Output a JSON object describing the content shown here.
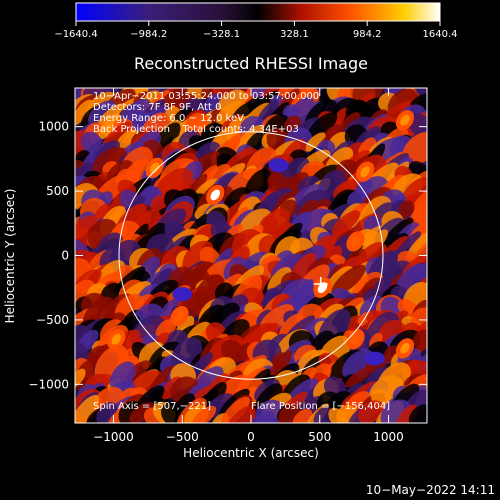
{
  "chart_data": {
    "type": "heatmap",
    "title": "Reconstructed RHESSI Image",
    "xlabel": "Heliocentric X (arcsec)",
    "ylabel": "Heliocentric Y (arcsec)",
    "xlim": [
      -1280,
      1280
    ],
    "ylim": [
      -1300,
      1300
    ],
    "x_ticks": [
      -1000,
      -500,
      0,
      500,
      1000
    ],
    "x_tick_labels": [
      "−1000",
      "−500",
      "0",
      "500",
      "1000"
    ],
    "y_ticks": [
      -1000,
      -500,
      0,
      500,
      1000
    ],
    "y_tick_labels": [
      "−1000",
      "−500",
      "0",
      "500",
      "1000"
    ],
    "colorbar": {
      "min": -1640.4,
      "max": 1640.4,
      "ticks": [
        -1640.4,
        -984.2,
        -328.1,
        328.1,
        984.2,
        1640.4
      ],
      "tick_labels": [
        "−1640.4",
        "−984.2",
        "−328.1",
        "328.1",
        "984.2",
        "1640.4"
      ],
      "colors": [
        "#0000ff",
        "#3a1f7a",
        "#2a0f3a",
        "#000000",
        "#b01000",
        "#ff5000",
        "#ffcc00",
        "#ffffff"
      ]
    },
    "info_lines": [
      "10−Apr−2011 03:55:24.000 to 03:57:00.000",
      "Detectors: 7F 8F 9F, Att 0",
      "Energy Range: 6.0 − 12.0 keV",
      "Back Projection    Total counts: 4.34E+03"
    ],
    "spin_axis_text": "Spin Axis = [507,−221]",
    "flare_position_text": "Flare Position = [−156,404]",
    "solar_limb_radius": 960,
    "flare_marker": [
      507,
      -221
    ],
    "hotspots": [
      {
        "x": -260,
        "y": 470,
        "value": 1640
      },
      {
        "x": 520,
        "y": -250,
        "value": 1500
      },
      {
        "x": -700,
        "y": 680,
        "value": 980
      },
      {
        "x": 830,
        "y": 650,
        "value": 950
      },
      {
        "x": 1120,
        "y": 1050,
        "value": 900
      },
      {
        "x": 760,
        "y": 110,
        "value": 820
      },
      {
        "x": -980,
        "y": -650,
        "value": 860
      },
      {
        "x": 1120,
        "y": -720,
        "value": 880
      },
      {
        "x": -520,
        "y": -470,
        "value": 750
      },
      {
        "x": 760,
        "y": -650,
        "value": 800
      }
    ],
    "coldspots": [
      {
        "x": 900,
        "y": -800,
        "value": -1000
      },
      {
        "x": -500,
        "y": -300,
        "value": -600
      },
      {
        "x": 200,
        "y": 700,
        "value": -550
      }
    ],
    "timestamp": "10−May−2022 14:11"
  }
}
